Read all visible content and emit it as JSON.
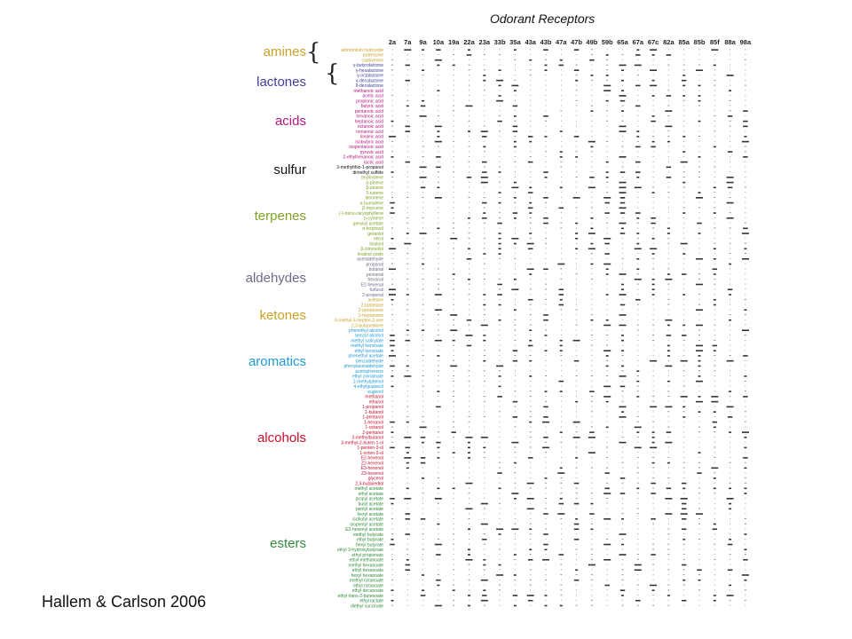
{
  "title": "Odorant Receptors",
  "credit": "Hallem & Carlson 2006",
  "categories": [
    {
      "key": "amines",
      "label": "amines",
      "color": "#c8a12a"
    },
    {
      "key": "lactones",
      "label": "lactones",
      "color": "#3c3f9a"
    },
    {
      "key": "acids",
      "label": "acids",
      "color": "#b5177e"
    },
    {
      "key": "sulfur",
      "label": "sulfur",
      "color": "#111111"
    },
    {
      "key": "terpenes",
      "label": "terpenes",
      "color": "#7ea324"
    },
    {
      "key": "aldehydes",
      "label": "aldehydes",
      "color": "#6d6d8a"
    },
    {
      "key": "ketones",
      "label": "ketones",
      "color": "#c9a227"
    },
    {
      "key": "aromatics",
      "label": "aromatics",
      "color": "#1e9ad6"
    },
    {
      "key": "alcohols",
      "label": "alcohols",
      "color": "#c8102e"
    },
    {
      "key": "esters",
      "label": "esters",
      "color": "#2e8b3a"
    }
  ],
  "receptors": [
    "2a",
    "7a",
    "9a",
    "10a",
    "19a",
    "22a",
    "23a",
    "33b",
    "35a",
    "43a",
    "43b",
    "47a",
    "47b",
    "49b",
    "59b",
    "65a",
    "67a",
    "67c",
    "82a",
    "85a",
    "85b",
    "85f",
    "88a",
    "98a"
  ],
  "odorant_groups": [
    {
      "category": "amines",
      "odorants": [
        "ammonium hydroxide",
        "putrescine",
        "cadaverine"
      ]
    },
    {
      "category": "lactones",
      "odorants": [
        "γ-butyrolactone",
        "γ-hexalactone",
        "γ-octalactone",
        "γ-decalactone",
        "δ-decalactone"
      ]
    },
    {
      "category": "acids",
      "odorants": [
        "methanoic acid",
        "acetic acid",
        "propionic acid",
        "butyric acid",
        "pentanoic acid",
        "hexanoic acid",
        "heptanoic acid",
        "octanoic acid",
        "nonanoic acid",
        "linoleic acid",
        "isobutyric acid",
        "isopentanoic acid",
        "pyruvic acid",
        "2-ethylhexanoic acid",
        "lactic acid"
      ]
    },
    {
      "category": "sulfur",
      "odorants": [
        "3-methylthio-1-propanol",
        "dimethyl sulfide"
      ]
    },
    {
      "category": "terpenes",
      "odorants": [
        "terpinolene",
        "α-pinene",
        "β-pinene",
        "3-carene",
        "limonene",
        "α-humulene",
        "β-myrcene",
        "(-)-trans-caryophyllene",
        "p-cymene",
        "geranyl acetate",
        "α-terpineol",
        "geraniol",
        "nerol",
        "linalool",
        "β-citronellol",
        "linalool oxide"
      ]
    },
    {
      "category": "aldehydes",
      "odorants": [
        "acetaldehyde",
        "propanal",
        "butanal",
        "pentanal",
        "hexanal",
        "E2-hexenal",
        "furfural",
        "2-propenal"
      ]
    },
    {
      "category": "ketones",
      "odorants": [
        "acetone",
        "2-butanone",
        "2-pentanone",
        "2-heptanone",
        "6-methyl-5-hepten-2-one",
        "2,3-butanedione"
      ]
    },
    {
      "category": "aromatics",
      "odorants": [
        "phenethyl alcohol",
        "benzyl alcohol",
        "methyl salicylate",
        "methyl benzoate",
        "ethyl benzoate",
        "phenethyl acetate",
        "benzaldehyde",
        "phenylacetaldehyde",
        "acetophenone",
        "ethyl cinnamate",
        "2-methylphenol",
        "4-ethylguaiacol",
        "eugenol"
      ]
    },
    {
      "category": "alcohols",
      "odorants": [
        "methanol",
        "ethanol",
        "1-propanol",
        "1-butanol",
        "1-pentanol",
        "1-hexanol",
        "1-octanol",
        "2-pentanol",
        "3-methylbutanol",
        "3-methyl-2-buten-1-ol",
        "1-penten-3-ol",
        "1-octen-3-ol",
        "E2-hexenol",
        "Z2-hexenol",
        "E3-hexenol",
        "Z3-hexenol",
        "glycerol",
        "2,3-butanediol"
      ]
    },
    {
      "category": "esters",
      "odorants": [
        "methyl acetate",
        "ethyl acetate",
        "propyl acetate",
        "butyl acetate",
        "pentyl acetate",
        "hexyl acetate",
        "isobutyl acetate",
        "isopentyl acetate",
        "E2-hexenyl acetate",
        "methyl butyrate",
        "ethyl butyrate",
        "hexyl butyrate",
        "ethyl 3-hydroxybutyrate",
        "ethyl propionate",
        "ethyl methanoate",
        "methyl hexanoate",
        "ethyl hexanoate",
        "hexyl hexanoate",
        "methyl octanoate",
        "ethyl octanoate",
        "ethyl decanoate",
        "ethyl trans-2-butenoate",
        "ethyl lactate",
        "diethyl succinate"
      ]
    }
  ]
}
